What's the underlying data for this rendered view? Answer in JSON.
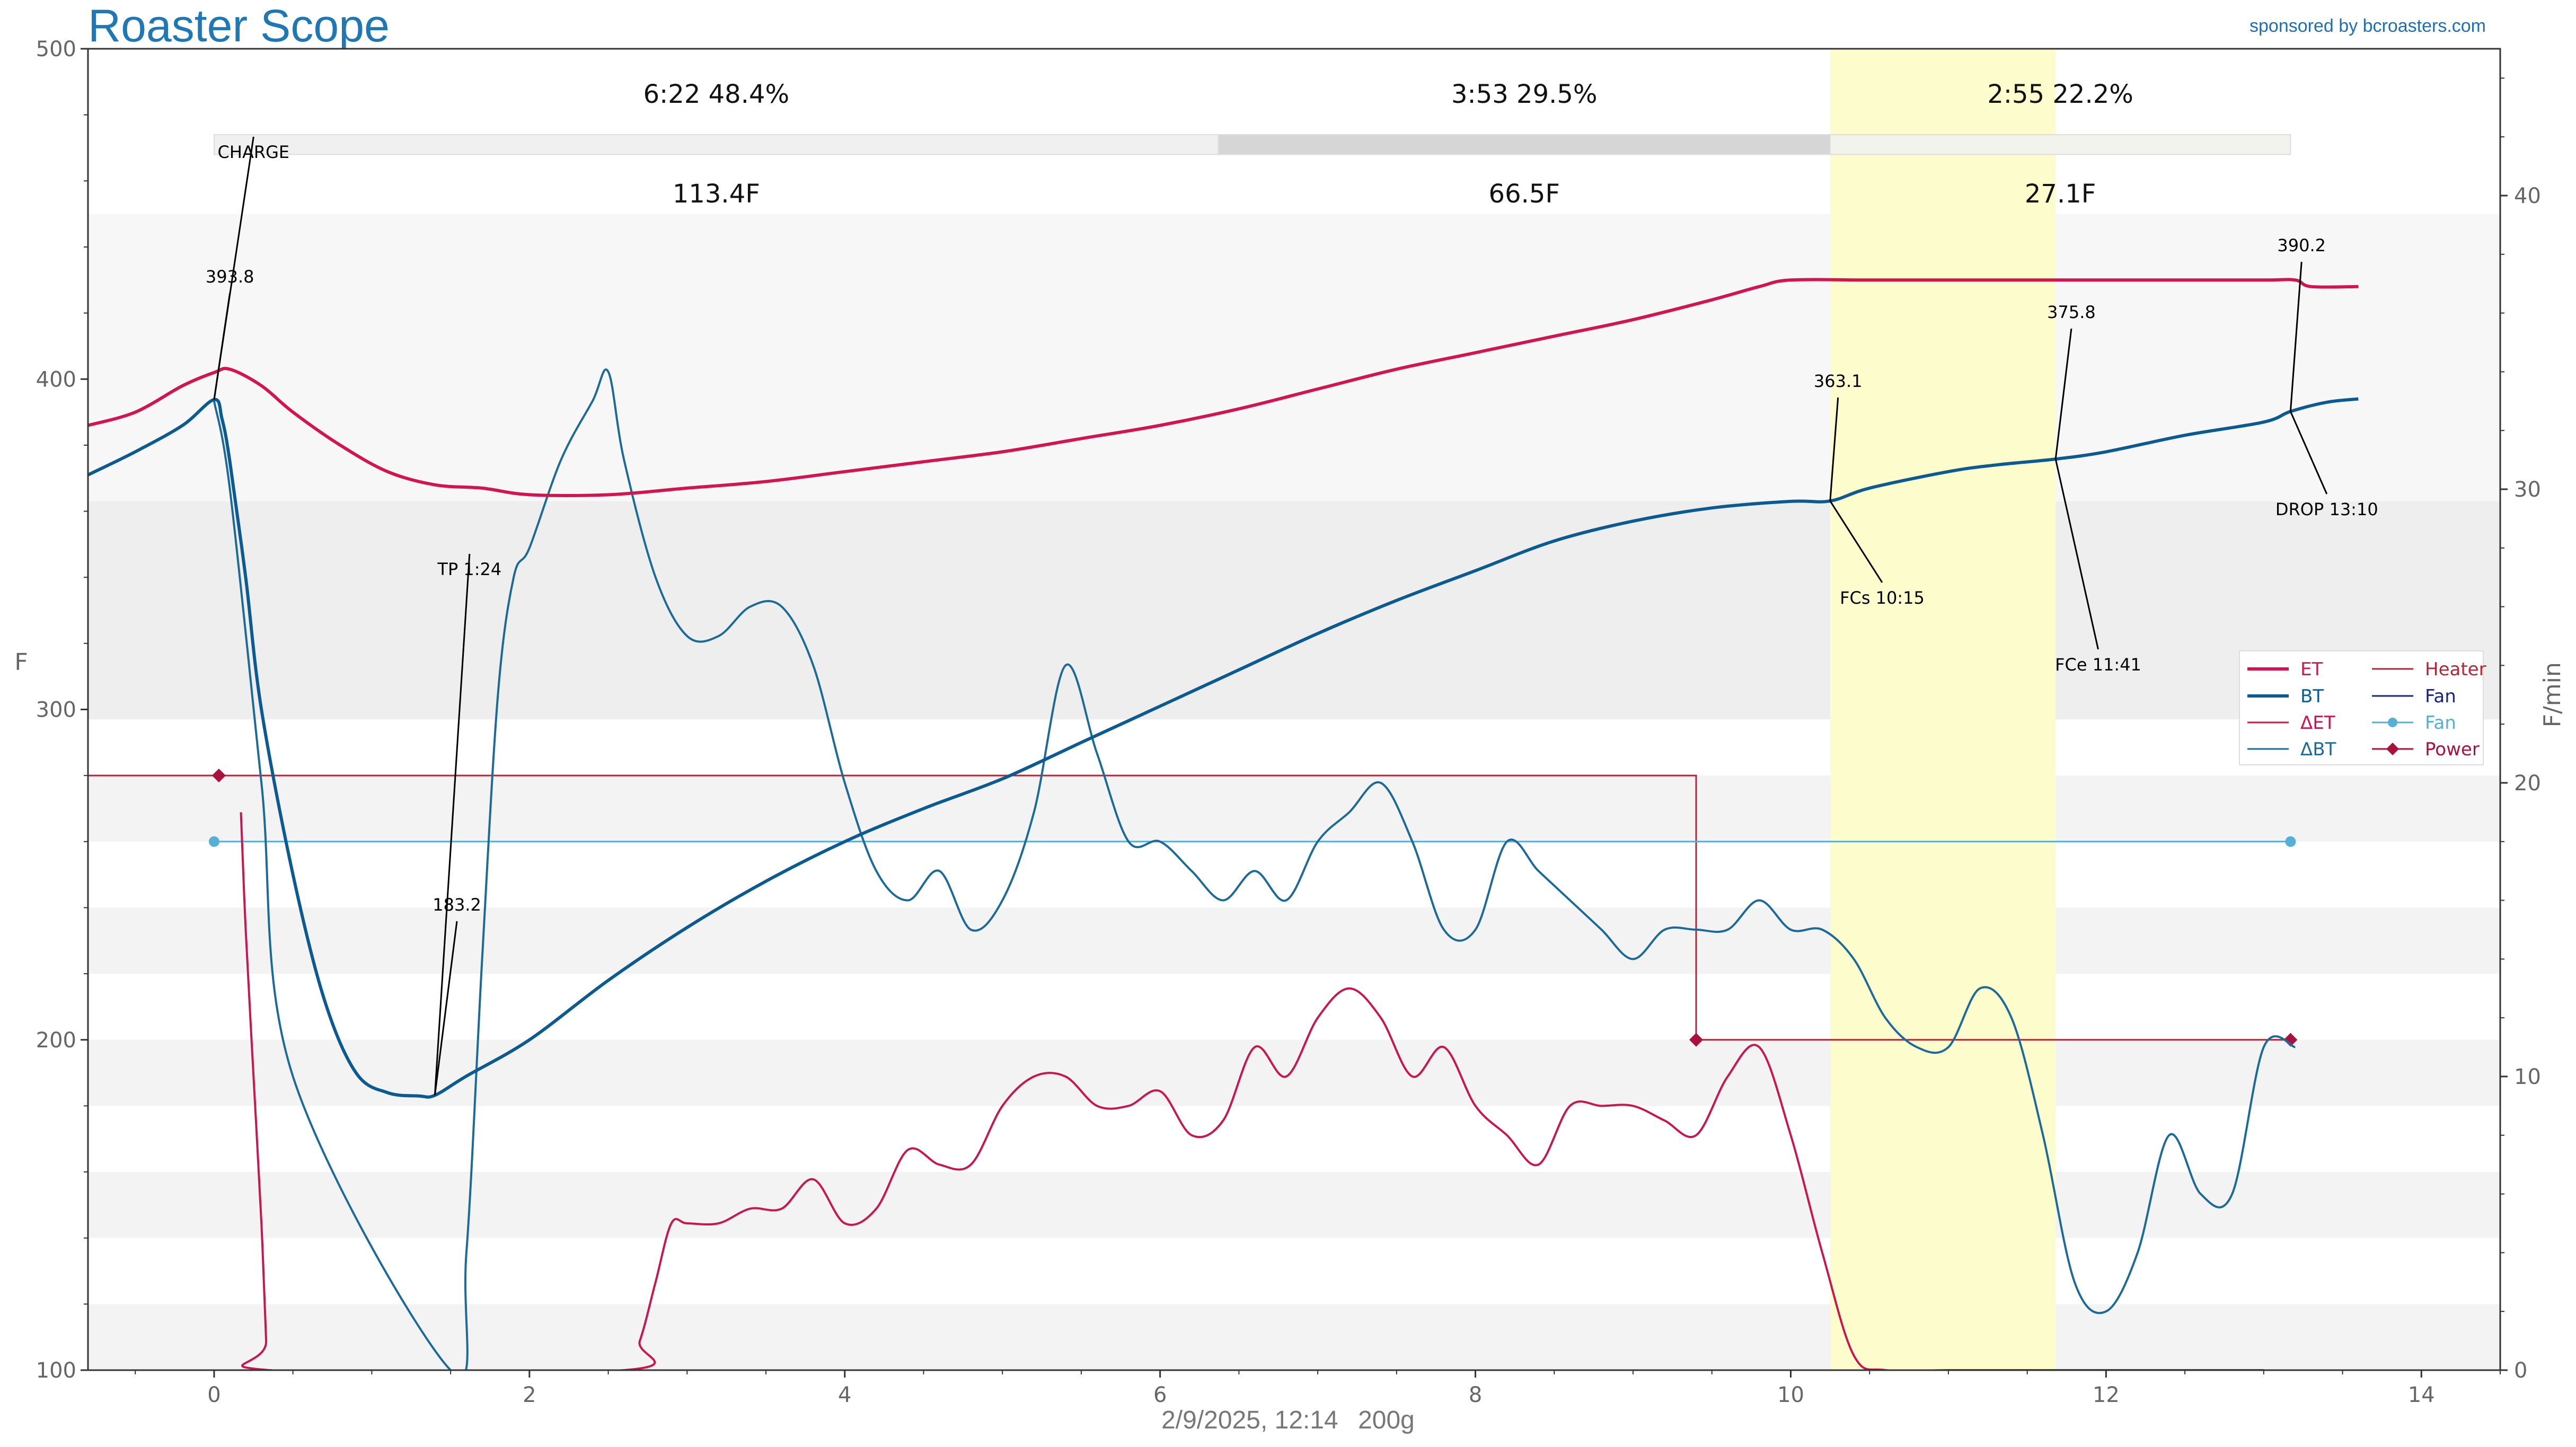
{
  "header": {
    "title": "Roaster Scope",
    "sponsor": "sponsored by bcroasters.com"
  },
  "footer": {
    "date": "2/9/2025, 12:14",
    "weight": "200g"
  },
  "colors": {
    "et": "#d2144f",
    "bt": "#0b5a91",
    "delta_et": "#c8174f",
    "delta_bt": "#1b6a97",
    "heater": "#b3263a",
    "fan_dark": "#1a237e",
    "fan": "#56afd6",
    "power": "#a8123c",
    "first_crack": "#fdfccd"
  },
  "chart_data": {
    "type": "line",
    "xlabel": "",
    "ylabel": "F",
    "ylabel_right": "F/min",
    "xlim": [
      -0.8,
      14.5
    ],
    "ylim": [
      100,
      500
    ],
    "ylim_right": [
      0,
      45
    ],
    "xticks": [
      0,
      2,
      4,
      6,
      8,
      10,
      12,
      14
    ],
    "yticks": [
      100,
      200,
      300,
      400,
      500
    ],
    "yticks_right": [
      0,
      10,
      20,
      30,
      40
    ],
    "grid": false,
    "legend_position": "right",
    "phases": [
      {
        "time": "6:22",
        "percent": "48.4%",
        "delta": "113.4F",
        "start": 0.0,
        "end": 6.37
      },
      {
        "time": "3:53",
        "percent": "29.5%",
        "delta": "66.5F",
        "start": 6.37,
        "end": 10.25
      },
      {
        "time": "2:55",
        "percent": "22.2%",
        "delta": "27.1F",
        "start": 10.25,
        "end": 13.17
      }
    ],
    "first_crack_band": [
      10.25,
      11.68
    ],
    "events": [
      {
        "label": "CHARGE",
        "x": 0.0,
        "y": 393.8,
        "value": "393.8"
      },
      {
        "label": "TP 1:24",
        "x": 1.4,
        "y": 183.2,
        "value": "183.2"
      },
      {
        "label": "FCs 10:15",
        "x": 10.25,
        "y": 363.1,
        "value": "363.1"
      },
      {
        "label": "FCe 11:41",
        "x": 11.68,
        "y": 375.8,
        "value": "375.8"
      },
      {
        "label": "DROP 13:10",
        "x": 13.17,
        "y": 390.2,
        "value": "390.2"
      }
    ],
    "legend": [
      "ET",
      "BT",
      "ΔET",
      "ΔBT",
      "Heater",
      "Fan",
      "Fan",
      "Power"
    ],
    "series": [
      {
        "name": "ET",
        "axis": "left",
        "x": [
          -0.8,
          -0.5,
          -0.2,
          0.0,
          0.1,
          0.3,
          0.5,
          0.8,
          1.1,
          1.4,
          1.7,
          2.0,
          2.5,
          3.0,
          3.5,
          4.0,
          4.5,
          5.0,
          5.5,
          6.0,
          6.5,
          7.0,
          7.5,
          8.0,
          8.5,
          9.0,
          9.5,
          9.8,
          10.0,
          10.5,
          11.0,
          11.5,
          12.0,
          12.5,
          13.0,
          13.2,
          13.3,
          13.6
        ],
        "values": [
          386,
          390,
          398,
          402,
          403,
          398,
          390,
          380,
          372,
          368,
          367,
          365,
          365,
          367,
          369,
          372,
          375,
          378,
          382,
          386,
          391,
          397,
          403,
          408,
          413,
          418,
          424,
          428,
          430,
          430,
          430,
          430,
          430,
          430,
          430,
          430,
          428,
          428
        ]
      },
      {
        "name": "BT",
        "axis": "left",
        "x": [
          -0.8,
          -0.5,
          -0.2,
          0.0,
          0.05,
          0.1,
          0.2,
          0.3,
          0.5,
          0.7,
          0.9,
          1.1,
          1.3,
          1.4,
          1.6,
          2.0,
          2.5,
          3.0,
          3.5,
          4.0,
          4.5,
          5.0,
          5.5,
          6.0,
          6.5,
          7.0,
          7.5,
          8.0,
          8.5,
          9.0,
          9.5,
          10.0,
          10.25,
          10.5,
          11.0,
          11.3,
          11.68,
          12.0,
          12.5,
          13.0,
          13.17,
          13.4,
          13.6
        ],
        "values": [
          371,
          378,
          386,
          393.8,
          388,
          375,
          340,
          300,
          250,
          212,
          190,
          184,
          183,
          183.2,
          189,
          200,
          218,
          234,
          248,
          260,
          270,
          279,
          290,
          301,
          312,
          323,
          333,
          342,
          351,
          357,
          361,
          363,
          363.1,
          367,
          372,
          374,
          375.8,
          378,
          383,
          387,
          390.2,
          393,
          394
        ]
      },
      {
        "name": "ΔET",
        "axis": "right",
        "x": [
          0.17,
          0.2,
          0.25,
          0.3,
          0.33,
          0.35,
          2.6,
          2.7,
          2.8,
          2.9,
          3.0,
          3.2,
          3.4,
          3.6,
          3.8,
          4.0,
          4.2,
          4.4,
          4.6,
          4.8,
          5.0,
          5.2,
          5.4,
          5.6,
          5.8,
          6.0,
          6.2,
          6.4,
          6.6,
          6.8,
          7.0,
          7.2,
          7.4,
          7.6,
          7.8,
          8.0,
          8.2,
          8.4,
          8.6,
          8.8,
          9.0,
          9.2,
          9.4,
          9.6,
          9.8,
          10.0,
          10.2,
          10.4,
          10.6,
          11.0,
          11.5,
          12.0,
          12.5,
          13.0
        ],
        "values": [
          19,
          15,
          10,
          5,
          1,
          0,
          0,
          1,
          3,
          5,
          5,
          5,
          5.5,
          5.5,
          6.5,
          5,
          5.5,
          7.5,
          7,
          7,
          9,
          10,
          10,
          9,
          9,
          9.5,
          8,
          8.5,
          11,
          10,
          12,
          13,
          12,
          10,
          11,
          9,
          8,
          7,
          9,
          9,
          9,
          8.5,
          8,
          10,
          11,
          8,
          4,
          0.5,
          0,
          0,
          0,
          0,
          0,
          0
        ]
      },
      {
        "name": "ΔBT",
        "axis": "right",
        "x": [
          0.0,
          0.1,
          0.3,
          0.5,
          1.5,
          1.6,
          1.7,
          1.8,
          1.9,
          2.0,
          2.2,
          2.4,
          2.5,
          2.6,
          2.8,
          3.0,
          3.2,
          3.4,
          3.6,
          3.8,
          4.0,
          4.2,
          4.4,
          4.6,
          4.8,
          5.0,
          5.2,
          5.4,
          5.6,
          5.8,
          6.0,
          6.2,
          6.4,
          6.6,
          6.8,
          7.0,
          7.2,
          7.4,
          7.6,
          7.8,
          8.0,
          8.2,
          8.4,
          8.6,
          8.8,
          9.0,
          9.2,
          9.4,
          9.6,
          9.8,
          10.0,
          10.2,
          10.4,
          10.6,
          10.8,
          11.0,
          11.2,
          11.4,
          11.6,
          11.8,
          12.0,
          12.2,
          12.4,
          12.6,
          12.8,
          13.0,
          13.2
        ],
        "values": [
          33,
          30,
          20,
          10,
          0,
          4,
          14,
          23,
          27,
          28,
          31,
          33,
          34,
          31,
          27,
          25,
          25,
          26,
          26,
          24,
          20,
          17,
          16,
          17,
          15,
          16,
          19,
          24,
          21,
          18,
          18,
          17,
          16,
          17,
          16,
          18,
          19,
          20,
          18,
          15,
          15,
          18,
          17,
          16,
          15,
          14,
          15,
          15,
          15,
          16,
          15,
          15,
          14,
          12,
          11,
          11,
          13,
          12,
          8,
          3,
          2,
          4,
          8,
          6,
          6,
          11,
          11
        ]
      },
      {
        "name": "Heater",
        "axis": "left",
        "x": [
          -0.8,
          9.4,
          9.4,
          13.17
        ],
        "values": [
          280,
          280,
          200,
          200
        ]
      },
      {
        "name": "Fan",
        "axis": "left",
        "x": [
          0.0,
          13.17
        ],
        "values": [
          260,
          260
        ]
      },
      {
        "name": "Power",
        "axis": "left",
        "x": [
          0.03,
          9.4,
          13.17
        ],
        "values": [
          280,
          200,
          200
        ]
      }
    ]
  }
}
